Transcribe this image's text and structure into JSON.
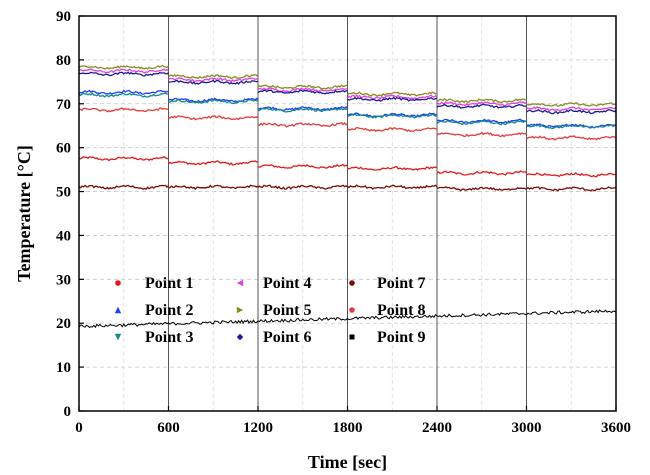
{
  "chart_data": {
    "type": "line",
    "xlabel": "Time [sec]",
    "ylabel": "Temperature [°C]",
    "xlim": [
      0,
      3600
    ],
    "ylim": [
      0,
      90
    ],
    "x_ticks": [
      "0",
      "600",
      "1200",
      "1800",
      "2400",
      "3000",
      "3600"
    ],
    "y_ticks": [
      "0",
      "10",
      "20",
      "30",
      "40",
      "50",
      "60",
      "70",
      "80",
      "90"
    ],
    "grid": "dashed",
    "legend_placement": "lower-left",
    "segment_boundaries": [
      600,
      1200,
      1800,
      2400,
      3000
    ],
    "segment_times": [
      [
        0,
        600
      ],
      [
        600,
        1200
      ],
      [
        1200,
        1800
      ],
      [
        1800,
        2400
      ],
      [
        2400,
        3000
      ],
      [
        3000,
        3600
      ]
    ],
    "series": [
      {
        "name": "Point 1",
        "color": "#e31a1c",
        "marker": "circle",
        "segment_means": [
          57.5,
          56.5,
          55.7,
          55.2,
          54.2,
          53.8
        ]
      },
      {
        "name": "Point 2",
        "color": "#1f3fff",
        "marker": "triangle-up",
        "segment_means": [
          72.6,
          70.8,
          68.9,
          67.4,
          66.0,
          65.0
        ]
      },
      {
        "name": "Point 3",
        "color": "#138a8a",
        "marker": "triangle-down",
        "segment_means": [
          72.0,
          70.5,
          68.6,
          67.2,
          65.7,
          64.8
        ]
      },
      {
        "name": "Point 4",
        "color": "#e040e0",
        "marker": "triangle-left",
        "segment_means": [
          77.5,
          75.5,
          73.2,
          71.5,
          70.0,
          68.8
        ]
      },
      {
        "name": "Point 5",
        "color": "#8a8a20",
        "marker": "triangle-right",
        "segment_means": [
          78.3,
          76.2,
          73.8,
          72.2,
          70.7,
          69.8
        ]
      },
      {
        "name": "Point 6",
        "color": "#1a1a99",
        "marker": "diamond",
        "segment_means": [
          76.8,
          74.9,
          72.7,
          71.0,
          69.4,
          68.2
        ]
      },
      {
        "name": "Point 7",
        "color": "#7a0a0a",
        "marker": "circle",
        "segment_means": [
          51.0,
          51.0,
          51.0,
          51.0,
          50.6,
          50.6
        ]
      },
      {
        "name": "Point 8",
        "color": "#e83a3a",
        "marker": "circle",
        "segment_means": [
          68.6,
          66.8,
          65.2,
          64.1,
          63.0,
          62.2
        ]
      },
      {
        "name": "Point 9",
        "color": "#000000",
        "marker": "square",
        "start_value": 19.3,
        "end_value": 22.8
      }
    ]
  }
}
